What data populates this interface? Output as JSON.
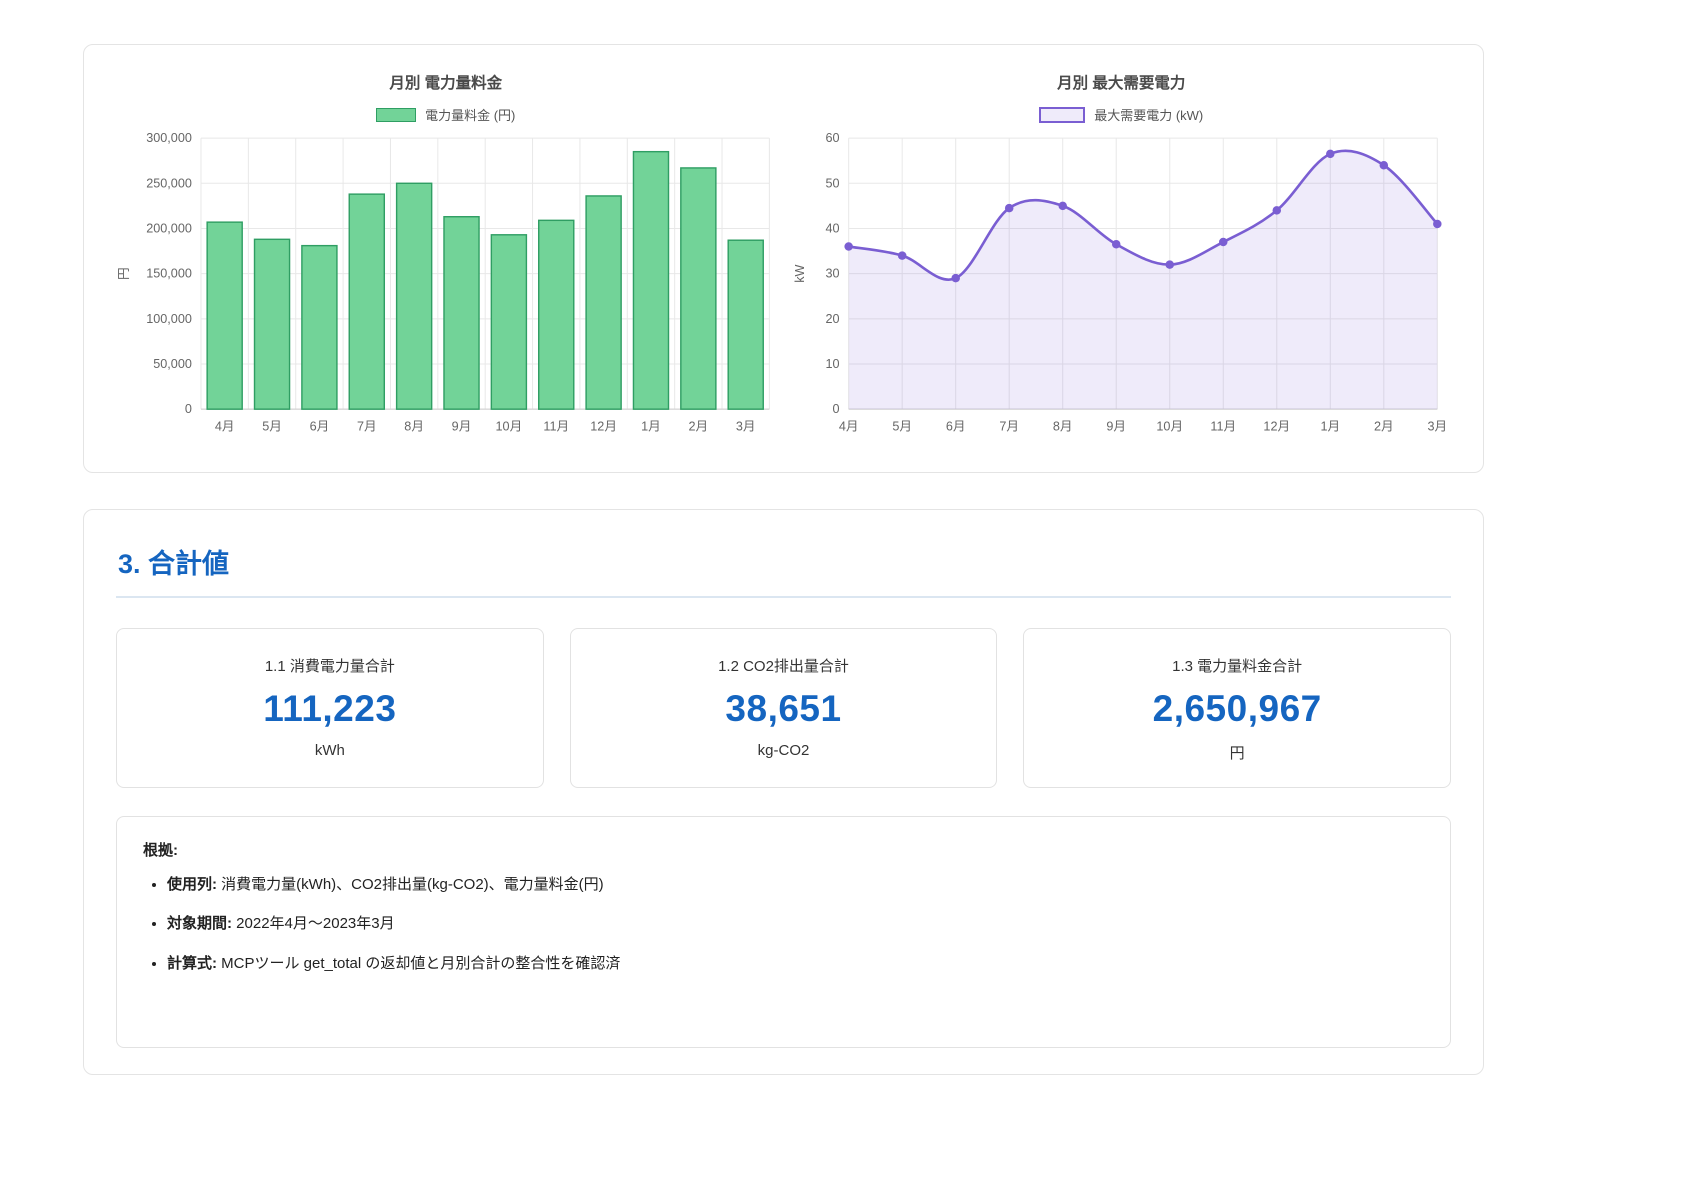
{
  "colors": {
    "accent_blue": "#1565c0",
    "bar_fill": "#72d398",
    "bar_border": "#2f9e63",
    "line": "#7a5ed2",
    "line_legend_fill": "#efebfa",
    "grid": "#e8e8e8",
    "axis": "#cccccc"
  },
  "chart_data": [
    {
      "type": "bar",
      "title": "月別 電力量料金",
      "legend": "電力量料金 (円)",
      "ylabel": "円",
      "xlabel": "",
      "categories": [
        "4月",
        "5月",
        "6月",
        "7月",
        "8月",
        "9月",
        "10月",
        "11月",
        "12月",
        "1月",
        "2月",
        "3月"
      ],
      "values": [
        207000,
        188000,
        181000,
        238000,
        250000,
        213000,
        193000,
        209000,
        236000,
        285000,
        267000,
        187000
      ],
      "ylim": [
        0,
        300000
      ],
      "ytick_step": 50000,
      "grid": true,
      "legend_position": "top"
    },
    {
      "type": "line",
      "title": "月別 最大需要電力",
      "legend": "最大需要電力 (kW)",
      "ylabel": "kW",
      "xlabel": "",
      "categories": [
        "4月",
        "5月",
        "6月",
        "7月",
        "8月",
        "9月",
        "10月",
        "11月",
        "12月",
        "1月",
        "2月",
        "3月"
      ],
      "values": [
        36,
        34,
        29,
        44.5,
        45,
        36.5,
        32,
        37,
        44,
        56.5,
        54,
        41
      ],
      "ylim": [
        0,
        60
      ],
      "ytick_step": 10,
      "area_fill": true,
      "smooth": true,
      "grid": true,
      "legend_position": "top"
    }
  ],
  "totals": {
    "heading": "3. 合計値",
    "cards": [
      {
        "label": "1.1 消費電力量合計",
        "value": "111,223",
        "unit": "kWh"
      },
      {
        "label": "1.2 CO2排出量合計",
        "value": "38,651",
        "unit": "kg-CO2"
      },
      {
        "label": "1.3 電力量料金合計",
        "value": "2,650,967",
        "unit": "円"
      }
    ]
  },
  "notes": {
    "title": "根拠:",
    "items": [
      {
        "label": "使用列:",
        "text": "消費電力量(kWh)、CO2排出量(kg-CO2)、電力量料金(円)"
      },
      {
        "label": "対象期間:",
        "text": "2022年4月〜2023年3月"
      },
      {
        "label": "計算式:",
        "text": "MCPツール get_total の返却値と月別合計の整合性を確認済"
      }
    ]
  }
}
